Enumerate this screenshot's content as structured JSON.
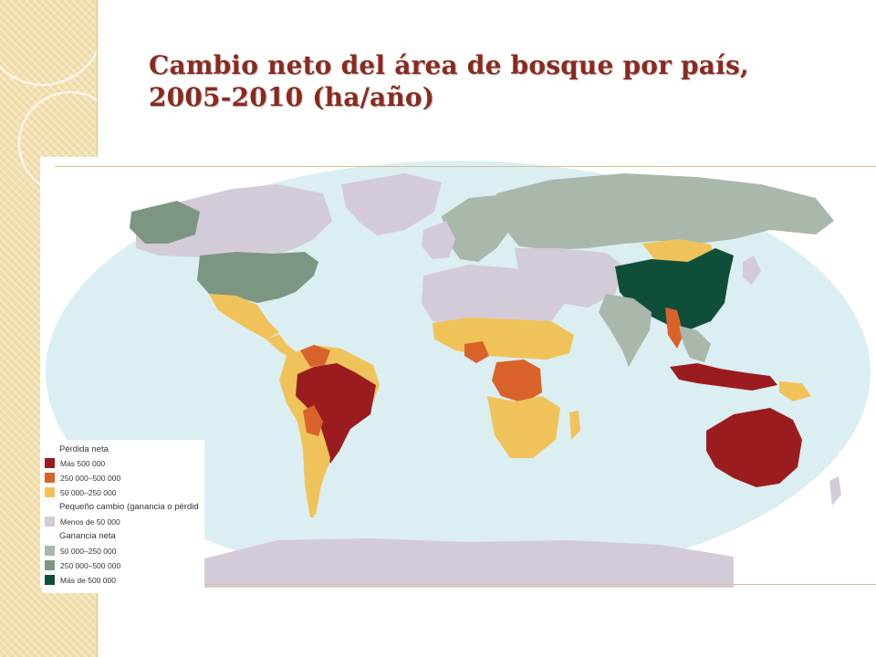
{
  "title": "Cambio neto del área de bosque por país, 2005-2010 (ha/año)",
  "legend": {
    "loss_heading": "Pérdida neta",
    "small_heading": "Pequeño cambio (ganancia o pérdid",
    "gain_heading": "Ganancia neta",
    "items": [
      {
        "label": "Más 500 000",
        "color": "#9b1c1f"
      },
      {
        "label": "250 000–500 000",
        "color": "#d9622b"
      },
      {
        "label": "50 000–250 000",
        "color": "#f0c35a"
      },
      {
        "label": "Menos de 50 000",
        "color": "#d3ccd8"
      },
      {
        "label": "50 000–250 000",
        "color": "#a9b8ab"
      },
      {
        "label": "250 000–500 000",
        "color": "#7d9681"
      },
      {
        "label": "Más de 500 000",
        "color": "#0f4f3a"
      }
    ]
  },
  "colors": {
    "title": "#8b2a1e",
    "ocean": "#dbeef2",
    "accent_strip": "#f2dfae"
  }
}
